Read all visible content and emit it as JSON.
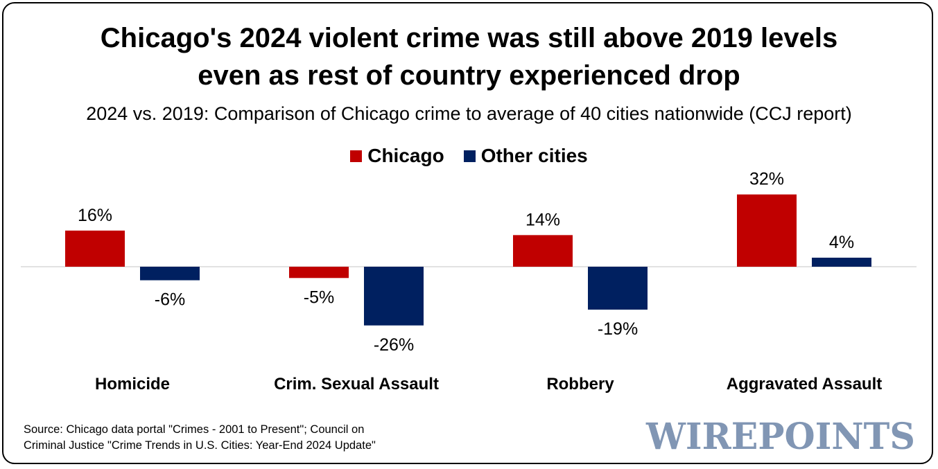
{
  "title_line1": "Chicago's 2024 violent crime was still above 2019 levels",
  "title_line2": "even as rest of country experienced drop",
  "subtitle": "2024 vs. 2019: Comparison of Chicago crime to average of 40 cities nationwide (CCJ report)",
  "source_line1": "Source: Chicago data portal \"Crimes - 2001 to Present\"; Council on",
  "source_line2": "Criminal Justice \"Crime Trends in U.S. Cities: Year-End 2024 Update\"",
  "logo_text": "WIREPOINTS",
  "colors": {
    "chicago": "#c00000",
    "other": "#002060",
    "logo": "#8196b4"
  },
  "chart_data": {
    "type": "bar",
    "title": "Chicago's 2024 violent crime was still above 2019 levels even as rest of country experienced drop",
    "subtitle": "2024 vs. 2019: Comparison of Chicago crime to average of 40 cities nationwide (CCJ report)",
    "categories": [
      "Homicide",
      "Crim. Sexual Assault",
      "Robbery",
      "Aggravated Assault"
    ],
    "series": [
      {
        "name": "Chicago",
        "values": [
          16,
          -5,
          14,
          32
        ],
        "labels": [
          "16%",
          "-5%",
          "14%",
          "32%"
        ],
        "color": "#c00000"
      },
      {
        "name": "Other cities",
        "values": [
          -6,
          -26,
          -19,
          4
        ],
        "labels": [
          "-6%",
          "-26%",
          "-19%",
          "4%"
        ],
        "color": "#002060"
      }
    ],
    "unit": "%",
    "ylim": [
      -26,
      32
    ],
    "legend": "top-center",
    "grid": false
  }
}
